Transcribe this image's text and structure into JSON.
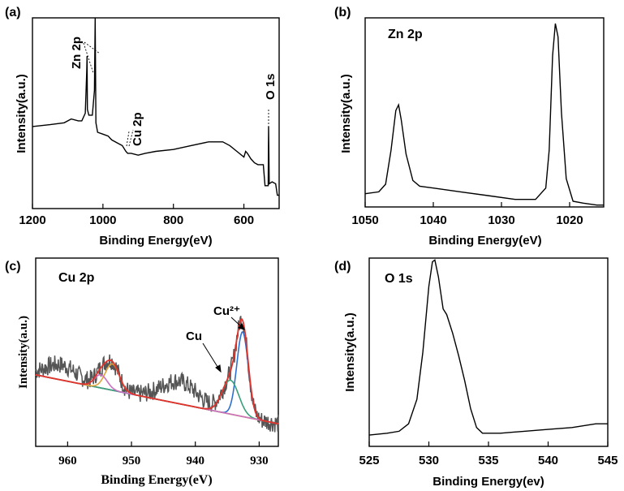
{
  "chart_data": [
    {
      "panel": "(a)",
      "type": "line",
      "title": "",
      "xlabel": "Binding Energy(eV)",
      "ylabel": "Intensity(a.u.)",
      "xlim": [
        1200,
        500
      ],
      "x_ticks": [
        1200,
        1000,
        800,
        600
      ],
      "ylim": [
        0,
        1
      ],
      "annotations": [
        "Zn 2p",
        "Cu 2p",
        "O 1s"
      ],
      "series": [
        {
          "x": [
            1200,
            1150,
            1110,
            1090,
            1070,
            1060,
            1050,
            1046,
            1045,
            1044,
            1040,
            1030,
            1024,
            1022,
            1020,
            1015,
            1000,
            985,
            980,
            975,
            955,
            945,
            935,
            930,
            920,
            900,
            880,
            850,
            800,
            750,
            700,
            680,
            660,
            640,
            620,
            600,
            595,
            590,
            580,
            570,
            560,
            545,
            540,
            531,
            530,
            528,
            520,
            510,
            505,
            500
          ],
          "y": [
            0.43,
            0.44,
            0.45,
            0.47,
            0.46,
            0.46,
            0.5,
            0.72,
            0.8,
            0.52,
            0.49,
            0.49,
            0.62,
            1.0,
            0.45,
            0.4,
            0.39,
            0.38,
            0.37,
            0.36,
            0.34,
            0.33,
            0.3,
            0.29,
            0.29,
            0.28,
            0.29,
            0.3,
            0.31,
            0.33,
            0.35,
            0.35,
            0.35,
            0.33,
            0.3,
            0.27,
            0.3,
            0.29,
            0.26,
            0.24,
            0.23,
            0.23,
            0.12,
            0.12,
            0.43,
            0.13,
            0.14,
            0.13,
            0.07,
            0.07
          ]
        }
      ]
    },
    {
      "panel": "(b)",
      "type": "line",
      "title": "Zn 2p",
      "xlabel": "Binding Energy(eV)",
      "ylabel": "Intensity(a.u.)",
      "xlim": [
        1050,
        1015
      ],
      "x_ticks": [
        1050,
        1040,
        1030,
        1020
      ],
      "ylim": [
        0,
        1
      ],
      "series": [
        {
          "x": [
            1050,
            1048,
            1047,
            1046.2,
            1045.5,
            1045.1,
            1044.7,
            1044,
            1043,
            1042,
            1040,
            1036,
            1032,
            1028,
            1025,
            1023.5,
            1023,
            1022.5,
            1022.1,
            1021.7,
            1021.2,
            1020.5,
            1019.5,
            1018,
            1016,
            1015
          ],
          "y": [
            0.07,
            0.08,
            0.12,
            0.3,
            0.51,
            0.54,
            0.46,
            0.28,
            0.14,
            0.11,
            0.1,
            0.08,
            0.06,
            0.04,
            0.04,
            0.1,
            0.3,
            0.8,
            0.97,
            0.9,
            0.5,
            0.15,
            0.03,
            0.02,
            0.01,
            0.01
          ]
        }
      ]
    },
    {
      "panel": "(c)",
      "type": "line",
      "title": "Cu 2p",
      "xlabel": "Binding Energy(eV)",
      "ylabel": "Intensity(a.u.)",
      "xlim": [
        965,
        927
      ],
      "x_ticks": [
        960,
        950,
        940,
        930
      ],
      "ylim": [
        0,
        1
      ],
      "annotations": [
        "Cu²⁺",
        "Cu"
      ],
      "baseline": {
        "x": [
          965,
          927
        ],
        "y": [
          0.38,
          0.12
        ]
      },
      "gaussians": [
        {
          "name": "Cu²⁺",
          "center": 932.6,
          "height": 0.45,
          "sigma": 0.9,
          "color": "#2f6fcf"
        },
        {
          "name": "Cu",
          "center": 934.5,
          "height": 0.18,
          "sigma": 1.3,
          "color": "#3aa07a"
        },
        {
          "center": 953.0,
          "height": 0.14,
          "sigma": 1.1,
          "color": "#e0a23a"
        },
        {
          "center": 954.8,
          "height": 0.07,
          "sigma": 1.0,
          "color": "#c971c0"
        }
      ],
      "noise_amplitude": 0.05,
      "colors": {
        "raw": "#555555",
        "envelope": "#e0332b",
        "baseline": "#c9a227"
      }
    },
    {
      "panel": "(d)",
      "type": "line",
      "title": "O 1s",
      "xlabel": "Binding Energy(ev)",
      "ylabel": "Intensity(a.u.)",
      "xlim": [
        525,
        545
      ],
      "x_ticks": [
        525,
        530,
        535,
        540,
        545
      ],
      "ylim": [
        0,
        1
      ],
      "series": [
        {
          "x": [
            525,
            526.5,
            527.5,
            528.3,
            529,
            529.5,
            530,
            530.3,
            530.5,
            530.8,
            531.2,
            531.5,
            532,
            532.5,
            533,
            533.5,
            534,
            534.5,
            536,
            538,
            540,
            542,
            544,
            545
          ],
          "y": [
            0.06,
            0.07,
            0.08,
            0.12,
            0.25,
            0.5,
            0.85,
            0.98,
            0.99,
            0.9,
            0.73,
            0.7,
            0.6,
            0.48,
            0.35,
            0.2,
            0.1,
            0.07,
            0.07,
            0.08,
            0.09,
            0.1,
            0.12,
            0.12
          ]
        }
      ]
    }
  ]
}
